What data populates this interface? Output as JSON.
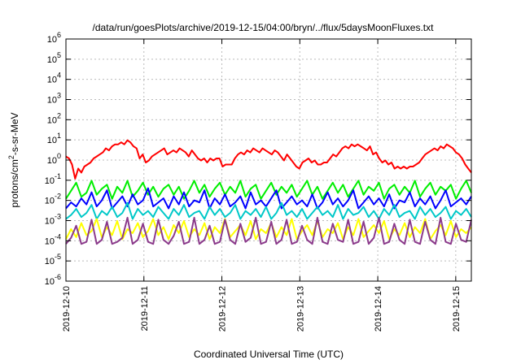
{
  "chart_data": {
    "type": "line",
    "title": "/data/run/goesPlots/archive/2019-12-15/04:00/bryn/../flux/5daysMoonFluxes.txt",
    "xlabel": "Coordinated Universal Time (UTC)",
    "ylabel": {
      "prefix": "protons/cm",
      "sup": "2",
      "suffix": "-s-sr-MeV"
    },
    "y_scale": "log",
    "ylim_exponents": [
      -6,
      6
    ],
    "y_tick_labels": [
      {
        "base": "10",
        "exp": "-6"
      },
      {
        "base": "10",
        "exp": "-5"
      },
      {
        "base": "10",
        "exp": "-4"
      },
      {
        "base": "10",
        "exp": "-3"
      },
      {
        "base": "10",
        "exp": "-2"
      },
      {
        "base": "10",
        "exp": "-1"
      },
      {
        "base": "10",
        "exp": "0"
      },
      {
        "base": "10",
        "exp": "1"
      },
      {
        "base": "10",
        "exp": "2"
      },
      {
        "base": "10",
        "exp": "3"
      },
      {
        "base": "10",
        "exp": "4"
      },
      {
        "base": "10",
        "exp": "5"
      },
      {
        "base": "10",
        "exp": "6"
      }
    ],
    "x_tick_labels": [
      "2019-12-10",
      "2019-12-11",
      "2019-12-12",
      "2019-12-13",
      "2019-12-14",
      "2019-12-15"
    ],
    "x_range_days": [
      0,
      5.2
    ],
    "grid": true,
    "legend": "none",
    "series": [
      {
        "color": "#ff0000",
        "base": 1.2,
        "log_values": [
          0.1,
          0.0,
          -0.3,
          -1.0,
          -0.5,
          -0.7,
          -0.4,
          -0.3,
          -0.2,
          0.0,
          0.1,
          0.2,
          0.3,
          0.5,
          0.4,
          0.6,
          0.7,
          0.7,
          0.8,
          0.7,
          0.9,
          0.8,
          0.6,
          0.5,
          0.0,
          0.2,
          -0.2,
          -0.1,
          0.1,
          0.2,
          0.3,
          0.4,
          0.5,
          0.2,
          0.3,
          0.4,
          0.3,
          0.5,
          0.4,
          0.3,
          0.1,
          0.4,
          0.2,
          0.0,
          -0.1,
          0.0,
          -0.2,
          0.0,
          -0.1,
          0.0,
          0.0,
          -0.4,
          -0.3,
          -0.3,
          -0.3,
          0.0,
          0.2,
          0.3,
          0.2,
          0.4,
          0.3,
          0.5,
          0.4,
          0.3,
          0.5,
          0.4,
          0.3,
          0.2,
          0.4,
          0.3,
          0.1,
          -0.1,
          0.2,
          0.0,
          -0.2,
          -0.4,
          -0.5,
          -0.2,
          -0.1,
          0.0,
          -0.2,
          -0.1,
          -0.3,
          -0.3,
          -0.2,
          -0.2,
          0.0,
          0.2,
          0.1,
          0.3,
          0.5,
          0.6,
          0.5,
          0.7,
          0.6,
          0.7,
          0.6,
          0.5,
          0.4,
          0.6,
          0.2,
          0.3,
          0.0,
          -0.2,
          -0.1,
          -0.3,
          -0.2,
          -0.5,
          -0.4,
          -0.5,
          -0.4,
          -0.5,
          -0.4,
          -0.4,
          -0.3,
          -0.2,
          0.0,
          0.2,
          0.3,
          0.4,
          0.5,
          0.4,
          0.6,
          0.5,
          0.7,
          0.6,
          0.5,
          0.3,
          0.2,
          0.0,
          -0.3,
          -0.5,
          -0.7
        ]
      },
      {
        "color": "#00ee00",
        "base": 0.012,
        "log_values": [
          0.0,
          0.4,
          0.8,
          0.1,
          0.3,
          0.9,
          0.2,
          0.5,
          0.7,
          0.0,
          0.6,
          0.3,
          0.9,
          0.1,
          0.4,
          0.8,
          0.2,
          0.6,
          0.1,
          0.5,
          0.7,
          0.2,
          0.6,
          0.0,
          0.4,
          0.9,
          0.3,
          0.7,
          0.1,
          0.5,
          0.8,
          0.2,
          0.6,
          0.3,
          0.9,
          0.1,
          0.5,
          0.7,
          0.0,
          0.4,
          0.8,
          0.2,
          0.6,
          0.3,
          0.7,
          0.1,
          0.5,
          0.9,
          0.2,
          0.6,
          0.0,
          0.4,
          0.8,
          0.3,
          0.7,
          0.1,
          0.5,
          0.9,
          0.2,
          0.6,
          0.4,
          0.8,
          0.0,
          0.5,
          0.7,
          0.2,
          0.6,
          0.3,
          0.9,
          0.1,
          0.5,
          0.8,
          0.2,
          0.6,
          0.4,
          0.7,
          0.0,
          0.5,
          0.9,
          0.3
        ]
      },
      {
        "color": "#0000ff",
        "base": 0.004,
        "log_values": [
          0.0,
          0.3,
          0.1,
          0.5,
          0.2,
          0.8,
          0.1,
          0.4,
          0.9,
          0.0,
          0.3,
          0.6,
          0.1,
          0.7,
          0.2,
          0.4,
          1.0,
          0.1,
          0.3,
          0.5,
          0.0,
          0.6,
          0.2,
          0.8,
          0.1,
          0.4,
          0.3,
          0.9,
          0.0,
          0.5,
          0.2,
          0.7,
          0.1,
          0.3,
          0.6,
          0.0,
          0.8,
          0.2,
          0.4,
          0.1,
          0.5,
          0.9,
          0.0,
          0.3,
          0.6,
          0.2,
          0.4,
          0.1,
          0.7,
          0.0,
          0.3,
          0.8,
          0.2,
          0.5,
          0.1,
          0.4,
          0.9,
          0.0,
          0.3,
          0.6,
          0.2,
          0.5,
          0.1,
          0.7,
          0.0,
          0.4,
          0.3,
          0.8,
          0.1,
          0.5,
          0.2,
          0.6,
          0.0,
          0.4,
          0.9,
          0.1,
          0.3,
          0.5,
          0.2,
          0.6
        ]
      },
      {
        "color": "#00c8c8",
        "base": 0.0012,
        "log_values": [
          0.0,
          0.2,
          0.5,
          0.1,
          0.3,
          0.7,
          0.0,
          0.4,
          0.2,
          0.6,
          0.1,
          0.3,
          0.8,
          0.0,
          0.5,
          0.2,
          0.4,
          0.1,
          0.6,
          0.3,
          0.0,
          0.5,
          0.2,
          0.7,
          0.1,
          0.3,
          0.4,
          0.0,
          0.6,
          0.2,
          0.5,
          0.1,
          0.3,
          0.7,
          0.0,
          0.4,
          0.2,
          0.5,
          0.1,
          0.6,
          0.0,
          0.3,
          0.8,
          0.2,
          0.4,
          0.1,
          0.5,
          0.0,
          0.3,
          0.6,
          0.2,
          0.4,
          0.1,
          0.7,
          0.0,
          0.5,
          0.2,
          0.3,
          0.6,
          0.1,
          0.4,
          0.0,
          0.5,
          0.2,
          0.7,
          0.1,
          0.3,
          0.4,
          0.0,
          0.6,
          0.2,
          0.5,
          0.1,
          0.3,
          0.6,
          0.0,
          0.4,
          0.2,
          0.5,
          0.1
        ]
      },
      {
        "color": "#ffff00",
        "base": 0.00012,
        "log_values": [
          0.0,
          0.5,
          0.1,
          0.8,
          0.2,
          0.4,
          1.0,
          0.1,
          0.6,
          0.2,
          0.9,
          0.0,
          0.5,
          0.3,
          0.8,
          0.1,
          0.4,
          1.0,
          0.2,
          0.6,
          0.0,
          0.7,
          0.3,
          0.9,
          0.1,
          0.5,
          0.2,
          0.8,
          0.0,
          0.6,
          0.3,
          1.0,
          0.1,
          0.4,
          0.7,
          0.2,
          0.9,
          0.0,
          0.5,
          0.3,
          0.8,
          0.1,
          0.6,
          0.2,
          1.0,
          0.0,
          0.4,
          0.7,
          0.2,
          0.9,
          0.1,
          0.5,
          0.3,
          0.8,
          0.0,
          0.6,
          0.2,
          1.0,
          0.1,
          0.4,
          0.7,
          0.3,
          0.9,
          0.0,
          0.5,
          0.2,
          0.8,
          0.1,
          0.6,
          0.3,
          1.0,
          0.0,
          0.4,
          0.7,
          0.2,
          0.9,
          0.1,
          0.5,
          0.3,
          0.6
        ]
      },
      {
        "color": "#8b3a8b",
        "base": 7e-05,
        "log_values": [
          0.0,
          0.3,
          0.9,
          0.0,
          0.1,
          1.2,
          0.0,
          0.2,
          1.1,
          0.0,
          0.1,
          0.3,
          1.3,
          0.0,
          0.2,
          1.0,
          0.1,
          0.0,
          1.2,
          0.2,
          0.0,
          0.4,
          1.1,
          0.0,
          0.1,
          1.3,
          0.0,
          0.2,
          0.9,
          0.0,
          0.1,
          1.2,
          0.2,
          0.0,
          1.0,
          0.1,
          0.3,
          1.3,
          0.0,
          0.1,
          1.1,
          0.0,
          0.2,
          1.2,
          0.0,
          0.1,
          0.9,
          0.2,
          0.0,
          1.3,
          0.1,
          0.0,
          1.0,
          0.2,
          0.1,
          1.2,
          0.0,
          0.1,
          1.1,
          0.0,
          0.3,
          1.3,
          0.0,
          0.1,
          1.0,
          0.2,
          0.0,
          1.2,
          0.1,
          0.0,
          1.1,
          0.2,
          0.0,
          1.3,
          0.1,
          0.0,
          1.0,
          0.2,
          0.1,
          1.2
        ]
      }
    ]
  }
}
